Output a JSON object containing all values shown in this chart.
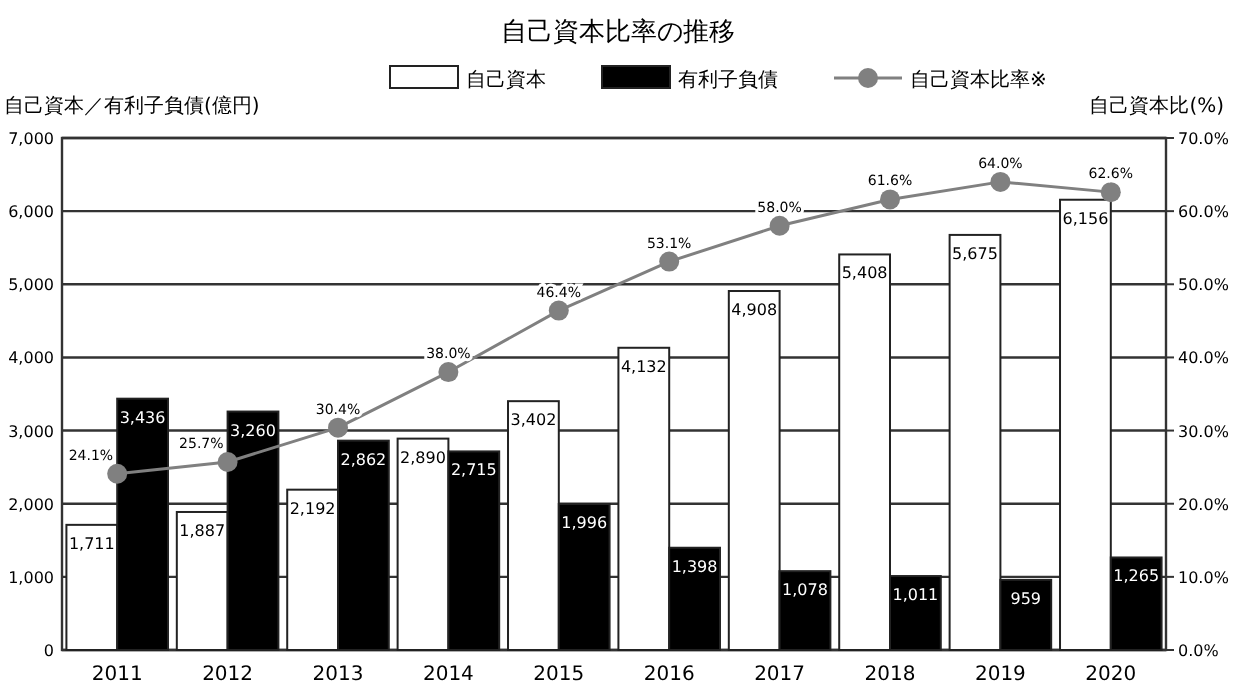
{
  "chart_data": {
    "type": "bar",
    "title": "自己資本比率の推移",
    "ylabel": "自己資本／有利子負債(億円)",
    "y2label": "自己資本比(%)",
    "categories": [
      "2011",
      "2012",
      "2013",
      "2014",
      "2015",
      "2016",
      "2017",
      "2018",
      "2019",
      "2020"
    ],
    "series": [
      {
        "name": "自己資本",
        "color": "#ffffff",
        "values": [
          1711,
          1887,
          2192,
          2890,
          3402,
          4132,
          4908,
          5408,
          5675,
          6156
        ],
        "value_labels": [
          "1,711",
          "1,887",
          "2,192",
          "2,890",
          "3,402",
          "4,132",
          "4,908",
          "5,408",
          "5,675",
          "6,156"
        ]
      },
      {
        "name": "有利子負債",
        "color": "#000000",
        "values": [
          3436,
          3260,
          2862,
          2715,
          1996,
          1398,
          1078,
          1011,
          959,
          1265
        ],
        "value_labels": [
          "3,436",
          "3,260",
          "2,862",
          "2,715",
          "1,996",
          "1,398",
          "1,078",
          "1,011",
          "959",
          "1,265"
        ]
      },
      {
        "name": "自己資本比率※",
        "type": "line",
        "axis": "y2",
        "color": "#808080",
        "marker": "circle",
        "values": [
          24.1,
          25.7,
          30.4,
          38.0,
          46.4,
          53.1,
          58.0,
          61.6,
          64.0,
          62.6
        ],
        "value_labels": [
          "24.1%",
          "25.7%",
          "30.4%",
          "38.0%",
          "46.4%",
          "53.1%",
          "58.0%",
          "61.6%",
          "64.0%",
          "62.6%"
        ]
      }
    ],
    "ylim": [
      0,
      7000
    ],
    "yticks": [
      0,
      {
        "value": 1000,
        "label": "1,000"
      },
      {
        "value": 2000,
        "label": "2,000"
      },
      {
        "value": 3000,
        "label": "3,000"
      },
      {
        "value": 4000,
        "label": "4,000"
      },
      {
        "value": 5000,
        "label": "5,000"
      },
      {
        "value": 6000,
        "label": "6,000"
      },
      {
        "value": 7000,
        "label": "7,000"
      }
    ],
    "y2lim": [
      0,
      70
    ],
    "y2ticks": [
      {
        "value": 0,
        "label": "0.0%"
      },
      {
        "value": 10,
        "label": "10.0%"
      },
      {
        "value": 20,
        "label": "20.0%"
      },
      {
        "value": 30,
        "label": "30.0%"
      },
      {
        "value": 40,
        "label": "40.0%"
      },
      {
        "value": 50,
        "label": "50.0%"
      },
      {
        "value": 60,
        "label": "60.0%"
      },
      {
        "value": 70,
        "label": "70.0%"
      }
    ],
    "grid": "y",
    "legend": "top"
  }
}
